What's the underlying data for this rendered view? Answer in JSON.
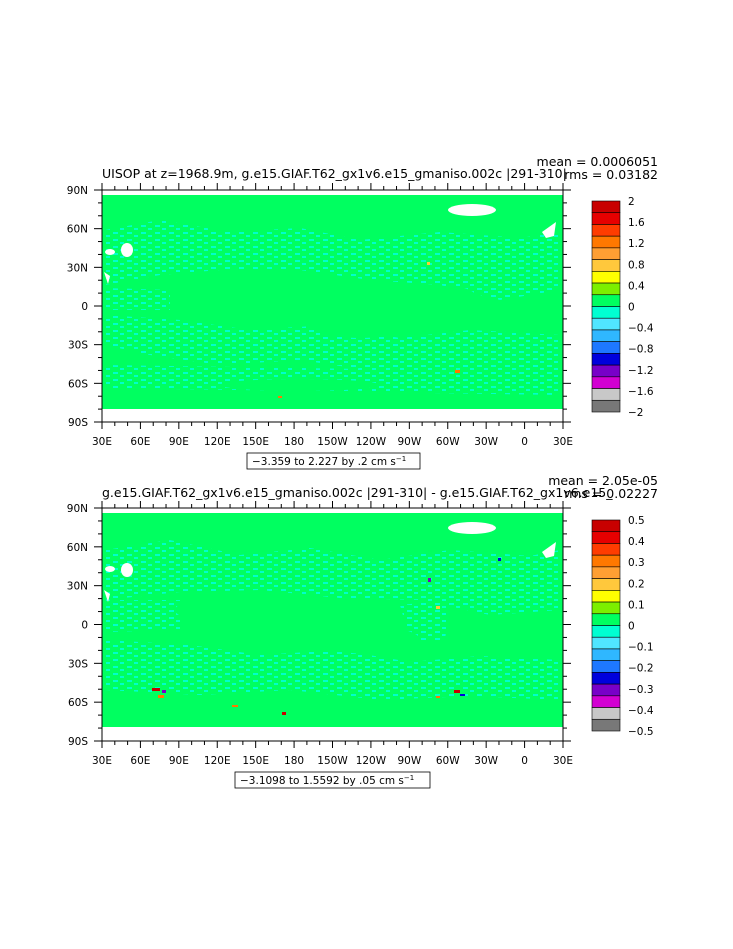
{
  "chart_data": [
    {
      "type": "heatmap",
      "title": "UISOP at z=1968.9m, g.e15.GIAF.T62_gx1v6.e15_gmaniso.002c |291-310|",
      "stats": {
        "mean": "mean = 0.0006051",
        "rms": "rms = 0.03182"
      },
      "x_ticks": [
        "30E",
        "60E",
        "90E",
        "120E",
        "150E",
        "180",
        "150W",
        "120W",
        "90W",
        "60W",
        "30W",
        "0",
        "30E"
      ],
      "y_ticks": [
        "90N",
        "60N",
        "30N",
        "0",
        "30S",
        "60S",
        "90S"
      ],
      "xlim": [
        30,
        390
      ],
      "ylim": [
        -90,
        90
      ],
      "range_label": "−3.359 to 2.227 by .2 cm s",
      "range_unit_exp": "−1",
      "colorbar": {
        "labels": [
          "2",
          "1.6",
          "1.2",
          "0.8",
          "0.4",
          "0",
          "−0.4",
          "−0.8",
          "−1.2",
          "−1.6",
          "−2"
        ],
        "colors": [
          "#c80000",
          "#e60000",
          "#ff3c00",
          "#ff7800",
          "#ff9f33",
          "#ffc83c",
          "#ffff00",
          "#7cef00",
          "#00ff60",
          "#00ffd2",
          "#50e6ff",
          "#2fb7ff",
          "#1e78ff",
          "#0000dc",
          "#7800c8",
          "#d200d2",
          "#c8c8c8",
          "#787878"
        ]
      }
    },
    {
      "type": "heatmap",
      "title": "g.e15.GIAF.T62_gx1v6.e15_gmaniso.002c |291-310| - g.e15.GIAF.T62_gx1v6.e15_",
      "stats": {
        "mean": "mean = 2.05e-05",
        "rms": "rms = 0.02227"
      },
      "x_ticks": [
        "30E",
        "60E",
        "90E",
        "120E",
        "150E",
        "180",
        "150W",
        "120W",
        "90W",
        "60W",
        "30W",
        "0",
        "30E"
      ],
      "y_ticks": [
        "90N",
        "60N",
        "30N",
        "0",
        "30S",
        "60S",
        "90S"
      ],
      "xlim": [
        30,
        390
      ],
      "ylim": [
        -90,
        90
      ],
      "range_label": "−3.1098 to 1.5592 by .05 cm s",
      "range_unit_exp": "−1",
      "colorbar": {
        "labels": [
          "0.5",
          "0.4",
          "0.3",
          "0.2",
          "0.1",
          "0",
          "−0.1",
          "−0.2",
          "−0.3",
          "−0.4",
          "−0.5"
        ],
        "colors": [
          "#c80000",
          "#e60000",
          "#ff3c00",
          "#ff7800",
          "#ff9f33",
          "#ffc83c",
          "#ffff00",
          "#7cef00",
          "#00ff60",
          "#00ffd2",
          "#50e6ff",
          "#2fb7ff",
          "#1e78ff",
          "#0000dc",
          "#7800c8",
          "#d200d2",
          "#c8c8c8",
          "#787878"
        ]
      }
    }
  ]
}
